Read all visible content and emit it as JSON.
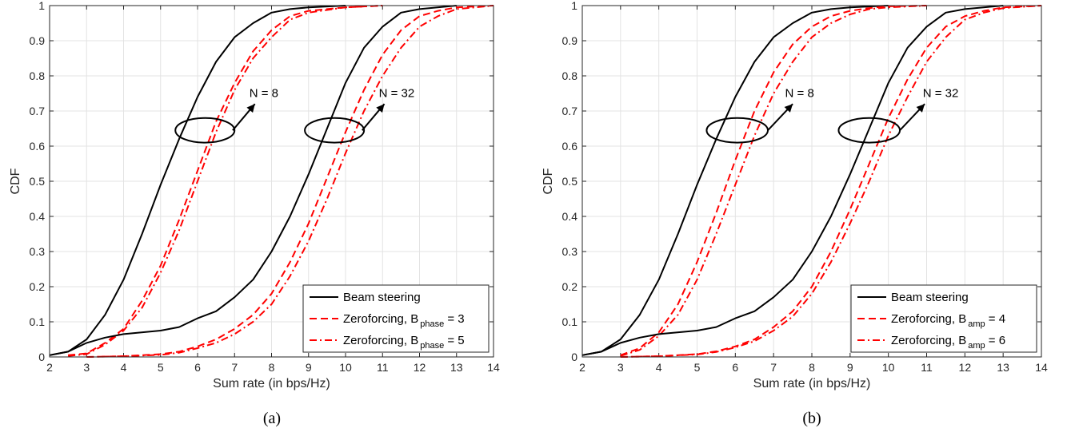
{
  "chart_data": [
    {
      "type": "line",
      "caption": "(a)",
      "xlabel": "Sum rate (in bps/Hz)",
      "ylabel": "CDF",
      "xlim": [
        2,
        14
      ],
      "ylim": [
        0,
        1
      ],
      "xticks": [
        2,
        3,
        4,
        5,
        6,
        7,
        8,
        9,
        10,
        11,
        12,
        13,
        14
      ],
      "yticks": [
        0,
        0.1,
        0.2,
        0.3,
        0.4,
        0.5,
        0.6,
        0.7,
        0.8,
        0.9,
        1
      ],
      "grid": true,
      "legend": {
        "placement": "bottom-right",
        "entries": [
          {
            "text": "Beam steering",
            "sub": "",
            "tail": "",
            "style": "solid",
            "color": "#000000"
          },
          {
            "text": "Zeroforcing, B",
            "sub": "phase",
            "tail": " = 3",
            "style": "dashed",
            "color": "#ff0000"
          },
          {
            "text": "Zeroforcing, B",
            "sub": "phase",
            "tail": " = 5",
            "style": "dashdot",
            "color": "#ff0000"
          }
        ]
      },
      "annotations": [
        {
          "text": "N = 8",
          "ellipse_center": [
            6.2,
            0.645
          ],
          "ellipse_radii": [
            0.8,
            0.035
          ],
          "arrow_from": [
            6.95,
            0.645
          ],
          "arrow_to": [
            7.55,
            0.72
          ],
          "label_at": [
            7.4,
            0.74
          ]
        },
        {
          "text": "N = 32",
          "ellipse_center": [
            9.7,
            0.645
          ],
          "ellipse_radii": [
            0.8,
            0.035
          ],
          "arrow_from": [
            10.45,
            0.645
          ],
          "arrow_to": [
            11.05,
            0.72
          ],
          "label_at": [
            10.9,
            0.74
          ]
        }
      ],
      "series": [
        {
          "legend_index": 0,
          "group": "N = 8",
          "style": "solid",
          "color": "#000000",
          "x": [
            2.0,
            2.5,
            3.0,
            3.5,
            4.0,
            4.5,
            5.0,
            5.5,
            6.0,
            6.5,
            7.0,
            7.5,
            8.0,
            8.5,
            9.0,
            10.0
          ],
          "y": [
            0.005,
            0.015,
            0.05,
            0.12,
            0.22,
            0.35,
            0.49,
            0.62,
            0.74,
            0.84,
            0.91,
            0.95,
            0.98,
            0.99,
            0.995,
            1.0
          ]
        },
        {
          "legend_index": 1,
          "group": "N = 8",
          "style": "dashed",
          "color": "#ff0000",
          "x": [
            2.5,
            3.0,
            3.5,
            4.0,
            4.5,
            5.0,
            5.5,
            6.0,
            6.5,
            7.0,
            7.5,
            8.0,
            8.5,
            9.0,
            10.0,
            11.0
          ],
          "y": [
            0.005,
            0.01,
            0.04,
            0.08,
            0.16,
            0.26,
            0.39,
            0.53,
            0.67,
            0.78,
            0.87,
            0.93,
            0.97,
            0.985,
            0.995,
            1.0
          ]
        },
        {
          "legend_index": 2,
          "group": "N = 8",
          "style": "dashdot",
          "color": "#ff0000",
          "x": [
            2.5,
            3.0,
            3.5,
            4.0,
            4.5,
            5.0,
            5.5,
            6.0,
            6.5,
            7.0,
            7.5,
            8.0,
            8.5,
            9.0,
            10.0,
            11.0
          ],
          "y": [
            0.003,
            0.008,
            0.035,
            0.075,
            0.14,
            0.24,
            0.36,
            0.5,
            0.64,
            0.76,
            0.85,
            0.91,
            0.96,
            0.98,
            0.995,
            1.0
          ]
        },
        {
          "legend_index": 0,
          "group": "N = 32",
          "style": "solid",
          "color": "#000000",
          "x": [
            2.0,
            2.5,
            3.0,
            3.5,
            4.0,
            5.0,
            5.5,
            6.0,
            6.5,
            7.0,
            7.5,
            8.0,
            8.5,
            9.0,
            9.5,
            10.0,
            10.5,
            11.0,
            11.5,
            12.0,
            13.0
          ],
          "y": [
            0.005,
            0.015,
            0.04,
            0.055,
            0.065,
            0.075,
            0.085,
            0.11,
            0.13,
            0.17,
            0.22,
            0.3,
            0.4,
            0.52,
            0.65,
            0.78,
            0.88,
            0.94,
            0.98,
            0.99,
            1.0
          ]
        },
        {
          "legend_index": 1,
          "group": "N = 32",
          "style": "dashed",
          "color": "#ff0000",
          "x": [
            3.0,
            4.0,
            5.0,
            5.5,
            6.0,
            6.5,
            7.0,
            7.5,
            8.0,
            8.5,
            9.0,
            9.5,
            10.0,
            10.5,
            11.0,
            11.5,
            12.0,
            12.5,
            13.0,
            14.0
          ],
          "y": [
            0.0,
            0.002,
            0.008,
            0.015,
            0.03,
            0.05,
            0.08,
            0.12,
            0.18,
            0.27,
            0.38,
            0.51,
            0.64,
            0.76,
            0.86,
            0.93,
            0.97,
            0.985,
            0.995,
            1.0
          ]
        },
        {
          "legend_index": 2,
          "group": "N = 32",
          "style": "dashdot",
          "color": "#ff0000",
          "x": [
            3.0,
            4.0,
            5.0,
            5.5,
            6.0,
            6.5,
            7.0,
            7.5,
            8.0,
            8.5,
            9.0,
            9.5,
            10.0,
            10.5,
            11.0,
            11.5,
            12.0,
            12.5,
            13.0,
            14.0
          ],
          "y": [
            0.0,
            0.002,
            0.006,
            0.012,
            0.025,
            0.04,
            0.065,
            0.1,
            0.15,
            0.23,
            0.33,
            0.45,
            0.58,
            0.7,
            0.8,
            0.88,
            0.94,
            0.97,
            0.99,
            1.0
          ]
        }
      ]
    },
    {
      "type": "line",
      "caption": "(b)",
      "xlabel": "Sum rate (in bps/Hz)",
      "ylabel": "CDF",
      "xlim": [
        2,
        14
      ],
      "ylim": [
        0,
        1
      ],
      "xticks": [
        2,
        3,
        4,
        5,
        6,
        7,
        8,
        9,
        10,
        11,
        12,
        13,
        14
      ],
      "yticks": [
        0,
        0.1,
        0.2,
        0.3,
        0.4,
        0.5,
        0.6,
        0.7,
        0.8,
        0.9,
        1
      ],
      "grid": true,
      "legend": {
        "placement": "bottom-right",
        "entries": [
          {
            "text": "Beam steering",
            "sub": "",
            "tail": "",
            "style": "solid",
            "color": "#000000"
          },
          {
            "text": "Zeroforcing, B",
            "sub": "amp",
            "tail": " = 4",
            "style": "dashed",
            "color": "#ff0000"
          },
          {
            "text": "Zeroforcing, B",
            "sub": "amp",
            "tail": " = 6",
            "style": "dashdot",
            "color": "#ff0000"
          }
        ]
      },
      "annotations": [
        {
          "text": "N = 8",
          "ellipse_center": [
            6.05,
            0.645
          ],
          "ellipse_radii": [
            0.8,
            0.035
          ],
          "arrow_from": [
            6.85,
            0.645
          ],
          "arrow_to": [
            7.5,
            0.72
          ],
          "label_at": [
            7.3,
            0.74
          ]
        },
        {
          "text": "N = 32",
          "ellipse_center": [
            9.5,
            0.645
          ],
          "ellipse_radii": [
            0.8,
            0.035
          ],
          "arrow_from": [
            10.3,
            0.645
          ],
          "arrow_to": [
            10.95,
            0.72
          ],
          "label_at": [
            10.9,
            0.74
          ]
        }
      ],
      "series": [
        {
          "legend_index": 0,
          "group": "N = 8",
          "style": "solid",
          "color": "#000000",
          "x": [
            2.0,
            2.5,
            3.0,
            3.5,
            4.0,
            4.5,
            5.0,
            5.5,
            6.0,
            6.5,
            7.0,
            7.5,
            8.0,
            8.5,
            9.0,
            10.0
          ],
          "y": [
            0.005,
            0.015,
            0.05,
            0.12,
            0.22,
            0.35,
            0.49,
            0.62,
            0.74,
            0.84,
            0.91,
            0.95,
            0.98,
            0.99,
            0.995,
            1.0
          ]
        },
        {
          "legend_index": 1,
          "group": "N = 8",
          "style": "dashed",
          "color": "#ff0000",
          "x": [
            3.0,
            3.5,
            4.0,
            4.5,
            5.0,
            5.5,
            6.0,
            6.5,
            7.0,
            7.5,
            8.0,
            8.5,
            9.0,
            9.5,
            10.0,
            11.0
          ],
          "y": [
            0.005,
            0.025,
            0.07,
            0.15,
            0.27,
            0.41,
            0.56,
            0.7,
            0.81,
            0.89,
            0.94,
            0.97,
            0.985,
            0.993,
            0.998,
            1.0
          ]
        },
        {
          "legend_index": 2,
          "group": "N = 8",
          "style": "dashdot",
          "color": "#ff0000",
          "x": [
            3.0,
            3.5,
            4.0,
            4.5,
            5.0,
            5.5,
            6.0,
            6.5,
            7.0,
            7.5,
            8.0,
            8.5,
            9.0,
            9.5,
            10.0,
            11.0
          ],
          "y": [
            0.003,
            0.02,
            0.06,
            0.12,
            0.22,
            0.35,
            0.49,
            0.63,
            0.75,
            0.84,
            0.91,
            0.95,
            0.975,
            0.99,
            0.995,
            1.0
          ]
        },
        {
          "legend_index": 0,
          "group": "N = 32",
          "style": "solid",
          "color": "#000000",
          "x": [
            2.0,
            2.5,
            3.0,
            3.5,
            4.0,
            5.0,
            5.5,
            6.0,
            6.5,
            7.0,
            7.5,
            8.0,
            8.5,
            9.0,
            9.5,
            10.0,
            10.5,
            11.0,
            11.5,
            12.0,
            13.0
          ],
          "y": [
            0.005,
            0.015,
            0.04,
            0.055,
            0.065,
            0.075,
            0.085,
            0.11,
            0.13,
            0.17,
            0.22,
            0.3,
            0.4,
            0.52,
            0.65,
            0.78,
            0.88,
            0.94,
            0.98,
            0.99,
            1.0
          ]
        },
        {
          "legend_index": 1,
          "group": "N = 32",
          "style": "dashed",
          "color": "#ff0000",
          "x": [
            3.0,
            4.0,
            5.0,
            5.5,
            6.0,
            6.5,
            7.0,
            7.5,
            8.0,
            8.5,
            9.0,
            9.5,
            10.0,
            10.5,
            11.0,
            11.5,
            12.0,
            12.5,
            13.0,
            14.0
          ],
          "y": [
            0.0,
            0.002,
            0.008,
            0.016,
            0.03,
            0.05,
            0.085,
            0.13,
            0.2,
            0.3,
            0.42,
            0.55,
            0.68,
            0.79,
            0.88,
            0.94,
            0.97,
            0.985,
            0.995,
            1.0
          ]
        },
        {
          "legend_index": 2,
          "group": "N = 32",
          "style": "dashdot",
          "color": "#ff0000",
          "x": [
            3.0,
            4.0,
            5.0,
            5.5,
            6.0,
            6.5,
            7.0,
            7.5,
            8.0,
            8.5,
            9.0,
            9.5,
            10.0,
            10.5,
            11.0,
            11.5,
            12.0,
            12.5,
            13.0,
            14.0
          ],
          "y": [
            0.0,
            0.002,
            0.007,
            0.014,
            0.027,
            0.045,
            0.075,
            0.115,
            0.18,
            0.27,
            0.38,
            0.5,
            0.63,
            0.74,
            0.84,
            0.91,
            0.96,
            0.98,
            0.993,
            1.0
          ]
        }
      ]
    }
  ]
}
